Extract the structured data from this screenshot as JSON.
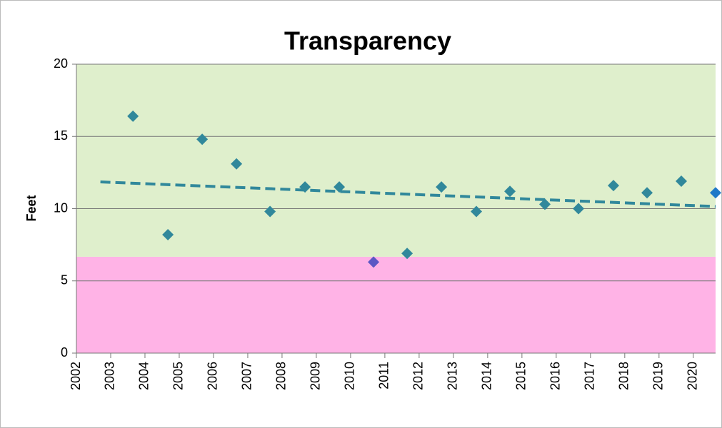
{
  "chart_data": {
    "type": "scatter",
    "title": "Transparency",
    "y_label": "Feet",
    "xlim": [
      2002,
      2020.65
    ],
    "xticks": [
      2002,
      2003,
      2004,
      2005,
      2006,
      2007,
      2008,
      2009,
      2010,
      2011,
      2012,
      2013,
      2014,
      2015,
      2016,
      2017,
      2018,
      2019,
      2020
    ],
    "ylim": [
      0,
      20
    ],
    "yticks": [
      0,
      5,
      10,
      15,
      20
    ],
    "grid": true,
    "bands": [
      {
        "from": 0,
        "to": 6.67,
        "color": "#ffb3e6"
      },
      {
        "from": 6.67,
        "to": 20,
        "color": "#dfefcc"
      }
    ],
    "series": [
      {
        "name": "Transparency",
        "x": [
          2003.65,
          2004.67,
          2005.67,
          2006.67,
          2007.65,
          2008.67,
          2009.67,
          2010.67,
          2011.65,
          2012.65,
          2013.67,
          2014.65,
          2015.67,
          2016.65,
          2017.67,
          2018.65,
          2019.65,
          2020.65
        ],
        "values": [
          16.4,
          8.2,
          14.8,
          13.1,
          9.8,
          11.5,
          11.5,
          6.3,
          6.9,
          11.5,
          9.8,
          11.2,
          10.3,
          10.0,
          11.6,
          11.1,
          11.9,
          11.1
        ],
        "colors": [
          "#31889b",
          "#31889b",
          "#31889b",
          "#31889b",
          "#31889b",
          "#31889b",
          "#31889b",
          "#5b57c4",
          "#31889b",
          "#31889b",
          "#31889b",
          "#31889b",
          "#31889b",
          "#31889b",
          "#31889b",
          "#31889b",
          "#31889b",
          "#1f78c8"
        ]
      }
    ],
    "trendline": {
      "x": [
        2002.7,
        2020.65
      ],
      "values": [
        11.85,
        10.15
      ],
      "color": "#31889b"
    }
  }
}
